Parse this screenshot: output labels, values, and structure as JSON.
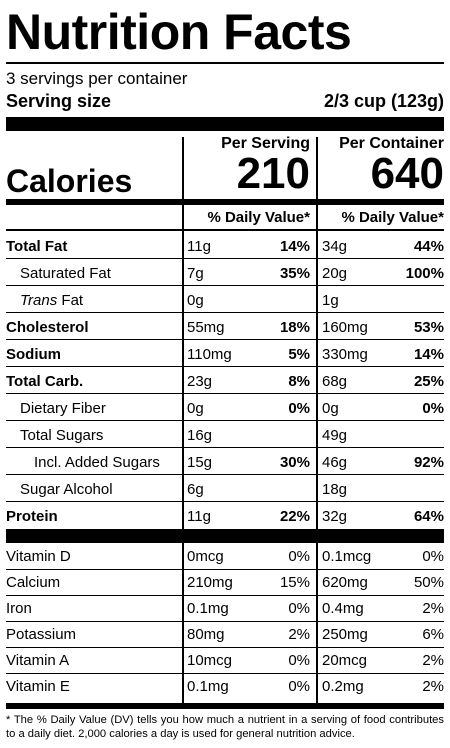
{
  "title": "Nutrition Facts",
  "servings_per_container": "3 servings per container",
  "serving_size_label": "Serving size",
  "serving_size_value": "2/3 cup (123g)",
  "calories": {
    "label": "Calories",
    "per_serving_header": "Per Serving",
    "per_container_header": "Per Container",
    "per_serving_value": "210",
    "per_container_value": "640"
  },
  "dv_header": "% Daily Value*",
  "nutrients": [
    {
      "name": "Total Fat",
      "serving_amount": "11g",
      "serving_dv": "14%",
      "container_amount": "34g",
      "container_dv": "44%"
    },
    {
      "name": "Saturated Fat",
      "serving_amount": "7g",
      "serving_dv": "35%",
      "container_amount": "20g",
      "container_dv": "100%"
    },
    {
      "name_italic": "Trans",
      "name": " Fat",
      "serving_amount": "0g",
      "serving_dv": "",
      "container_amount": "1g",
      "container_dv": ""
    },
    {
      "name": "Cholesterol",
      "serving_amount": "55mg",
      "serving_dv": "18%",
      "container_amount": "160mg",
      "container_dv": "53%"
    },
    {
      "name": "Sodium",
      "serving_amount": "110mg",
      "serving_dv": "5%",
      "container_amount": "330mg",
      "container_dv": "14%"
    },
    {
      "name": "Total Carb.",
      "serving_amount": "23g",
      "serving_dv": "8%",
      "container_amount": "68g",
      "container_dv": "25%"
    },
    {
      "name": "Dietary Fiber",
      "serving_amount": "0g",
      "serving_dv": "0%",
      "container_amount": "0g",
      "container_dv": "0%"
    },
    {
      "name": "Total Sugars",
      "serving_amount": "16g",
      "serving_dv": "",
      "container_amount": "49g",
      "container_dv": ""
    },
    {
      "name": "Incl. Added Sugars",
      "serving_amount": "15g",
      "serving_dv": "30%",
      "container_amount": "46g",
      "container_dv": "92%"
    },
    {
      "name": "Sugar Alcohol",
      "serving_amount": "6g",
      "serving_dv": "",
      "container_amount": "18g",
      "container_dv": ""
    },
    {
      "name": "Protein",
      "serving_amount": "11g",
      "serving_dv": "22%",
      "container_amount": "32g",
      "container_dv": "64%"
    }
  ],
  "vitamins": [
    {
      "name": "Vitamin D",
      "serving_amount": "0mcg",
      "serving_dv": "0%",
      "container_amount": "0.1mcg",
      "container_dv": "0%"
    },
    {
      "name": "Calcium",
      "serving_amount": "210mg",
      "serving_dv": "15%",
      "container_amount": "620mg",
      "container_dv": "50%"
    },
    {
      "name": "Iron",
      "serving_amount": "0.1mg",
      "serving_dv": "0%",
      "container_amount": "0.4mg",
      "container_dv": "2%"
    },
    {
      "name": "Potassium",
      "serving_amount": "80mg",
      "serving_dv": "2%",
      "container_amount": "250mg",
      "container_dv": "6%"
    },
    {
      "name": "Vitamin A",
      "serving_amount": "10mcg",
      "serving_dv": "0%",
      "container_amount": "20mcg",
      "container_dv": "2%"
    },
    {
      "name": "Vitamin E",
      "serving_amount": "0.1mg",
      "serving_dv": "0%",
      "container_amount": "0.2mg",
      "container_dv": "2%"
    }
  ],
  "footnote": "* The % Daily Value (DV) tells you how much a nutrient in a serving of food contributes to a daily diet. 2,000 calories a day is used for general nutrition advice."
}
